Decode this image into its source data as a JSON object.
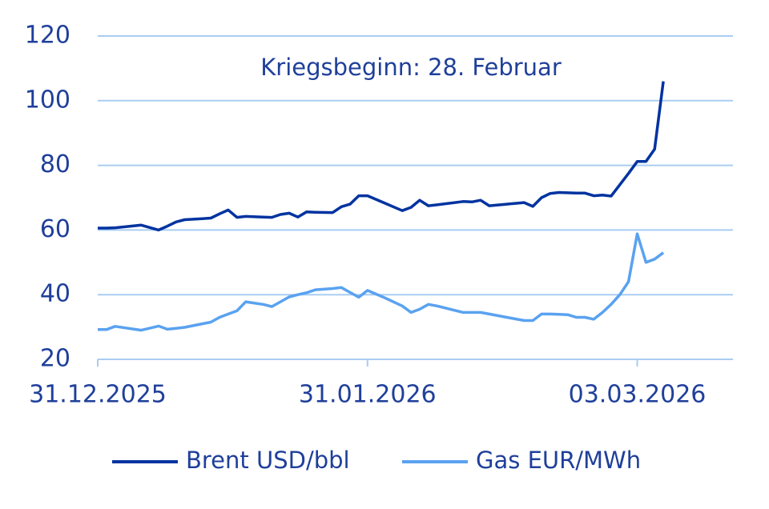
{
  "chart_data": {
    "type": "line",
    "annotation": "Kriegsbeginn: 28. Februar",
    "x": [
      "31.12.2025",
      "01.01.2026",
      "02.01.2026",
      "05.01.2026",
      "07.01.2026",
      "08.01.2026",
      "09.01.2026",
      "10.01.2026",
      "12.01.2026",
      "13.01.2026",
      "14.01.2026",
      "15.01.2026",
      "16.01.2026",
      "17.01.2026",
      "19.01.2026",
      "20.01.2026",
      "21.01.2026",
      "22.01.2026",
      "23.01.2026",
      "24.01.2026",
      "25.01.2026",
      "27.01.2026",
      "28.01.2026",
      "29.01.2026",
      "30.01.2026",
      "31.01.2026",
      "02.02.2026",
      "04.02.2026",
      "05.02.2026",
      "06.02.2026",
      "07.02.2026",
      "08.02.2026",
      "11.02.2026",
      "12.02.2026",
      "13.02.2026",
      "14.02.2026",
      "16.02.2026",
      "18.02.2026",
      "19.02.2026",
      "20.02.2026",
      "21.02.2026",
      "22.02.2026",
      "23.02.2026",
      "24.02.2026",
      "25.02.2026",
      "26.02.2026",
      "27.02.2026",
      "28.02.2026",
      "01.03.2026",
      "02.03.2026",
      "03.03.2026",
      "04.03.2026",
      "05.03.2026",
      "06.03.2026"
    ],
    "series": [
      {
        "name": "Brent USD/bbl",
        "color": "#0033a0",
        "values": [
          60.6,
          60.6,
          60.7,
          61.5,
          60.0,
          61.2,
          62.5,
          63.2,
          63.5,
          63.7,
          65.0,
          66.2,
          63.9,
          64.2,
          64.0,
          63.9,
          64.8,
          65.2,
          64.0,
          65.6,
          65.5,
          65.4,
          67.2,
          68.0,
          70.6,
          70.6,
          68.3,
          66.0,
          67.0,
          69.2,
          67.5,
          67.8,
          68.8,
          68.7,
          69.2,
          67.5,
          68.0,
          68.5,
          67.3,
          70.0,
          71.3,
          71.6,
          71.5,
          71.4,
          71.4,
          70.6,
          70.8,
          70.5,
          74.0,
          77.5,
          81.2,
          81.2,
          85.0,
          106.0
        ]
      },
      {
        "name": "Gas EUR/MWh",
        "color": "#5aa2f0",
        "values": [
          29.2,
          29.2,
          30.2,
          29.0,
          30.3,
          29.3,
          29.6,
          29.9,
          31.0,
          31.5,
          33.0,
          34.0,
          35.0,
          37.8,
          37.0,
          36.3,
          37.8,
          39.3,
          40.0,
          40.6,
          41.5,
          41.9,
          42.2,
          40.7,
          39.2,
          41.3,
          39.0,
          36.5,
          34.5,
          35.5,
          37.0,
          36.5,
          34.5,
          34.5,
          34.5,
          34.0,
          33.0,
          32.0,
          32.0,
          34.0,
          34.0,
          33.9,
          33.8,
          33.0,
          33.0,
          32.4,
          34.5,
          37.0,
          40.0,
          44.0,
          58.8,
          50.0,
          51.0,
          53.0
        ]
      }
    ],
    "xlim": [
      "31.12.2025",
      "14.03.2026"
    ],
    "xticks": [
      "31.12.2025",
      "31.01.2026",
      "03.03.2026"
    ],
    "ylim": [
      20,
      120
    ],
    "yticks": [
      20,
      40,
      60,
      80,
      100,
      120
    ],
    "grid": true,
    "legend": "bottom"
  }
}
